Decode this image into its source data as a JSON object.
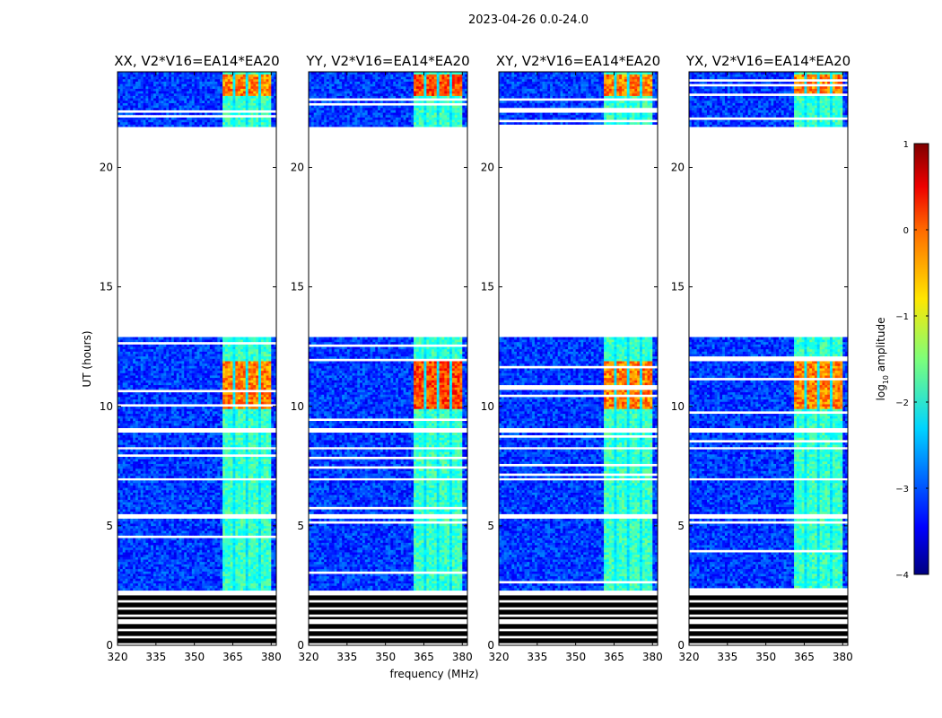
{
  "chart_data": {
    "type": "heatmap",
    "suptitle": "2023-04-26 0.0-24.0",
    "xlabel": "frequency (MHz)",
    "ylabel": "UT (hours)",
    "xlim": [
      320,
      382
    ],
    "ylim": [
      0,
      24
    ],
    "xticks": [
      320,
      335,
      350,
      365,
      380
    ],
    "yticks": [
      0,
      5,
      10,
      15,
      20
    ],
    "colorbar": {
      "label": "log10 amplitude",
      "range": [
        -4,
        1
      ],
      "ticks": [
        1,
        0,
        -1,
        -2,
        -3,
        -4
      ],
      "tick_labels": [
        "1",
        "0",
        "−1",
        "−2",
        "−3",
        "−4"
      ],
      "colormap": "jet"
    },
    "observed_hours": [
      [
        0.0,
        2.2
      ],
      [
        2.2,
        12.8
      ],
      [
        21.7,
        24.0
      ]
    ],
    "rfi_band_mhz": [
      361,
      380
    ],
    "strong_rfi_hours": [
      [
        9.8,
        11.8
      ],
      [
        23.0,
        23.9
      ]
    ],
    "panels": [
      {
        "title": "XX, V2*V16=EA14*EA20",
        "polarization": "XX",
        "baseline": "V2*V16=EA14*EA20"
      },
      {
        "title": "YY, V2*V16=EA14*EA20",
        "polarization": "YY",
        "baseline": "V2*V16=EA14*EA20"
      },
      {
        "title": "XY, V2*V16=EA14*EA20",
        "polarization": "XY",
        "baseline": "V2*V16=EA14*EA20"
      },
      {
        "title": "YX, V2*V16=EA14*EA20",
        "polarization": "YX",
        "baseline": "V2*V16=EA14*EA20"
      }
    ]
  }
}
